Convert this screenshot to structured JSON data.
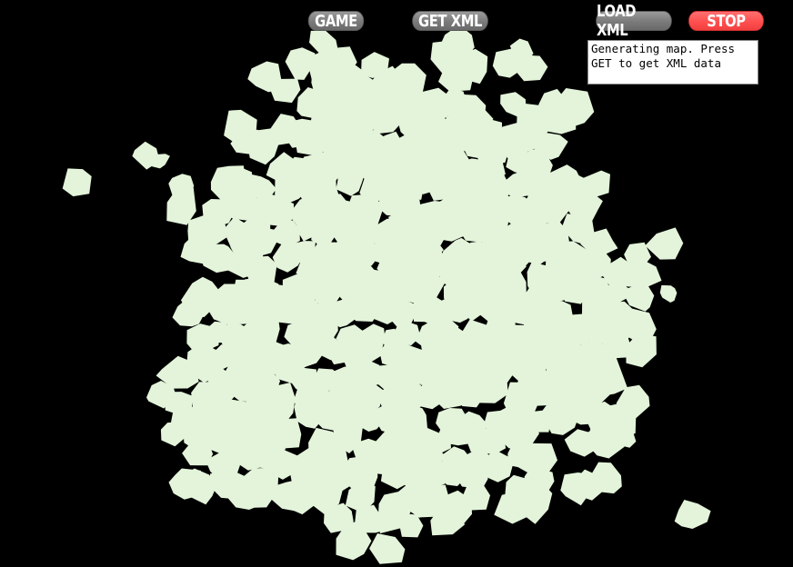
{
  "toolbar": {
    "game_label": "GAME",
    "get_xml_label": "GET XML",
    "load_xml_label": "LOAD XML",
    "stop_label": "STOP"
  },
  "status": {
    "message": "Generating map. Press GET to get XML data"
  },
  "colors": {
    "background": "#000000",
    "land": "#e3f4da",
    "button_gray": "#888888",
    "button_active": "#ff5555"
  }
}
